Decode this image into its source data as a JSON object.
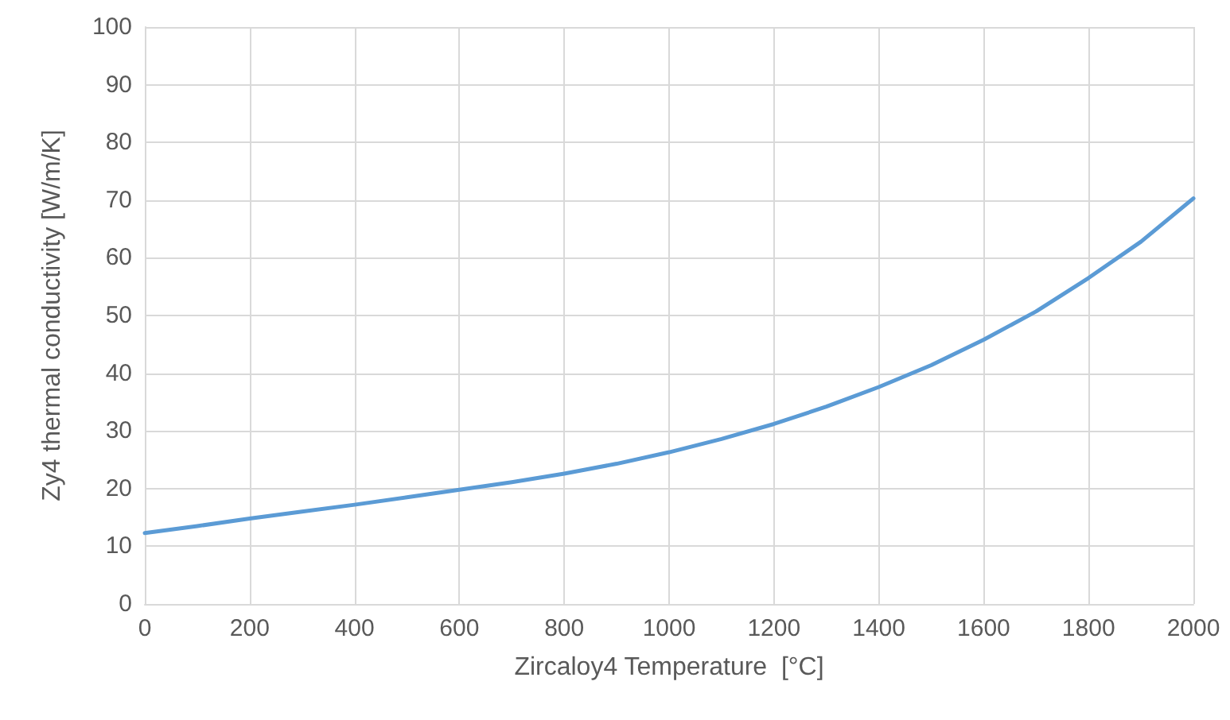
{
  "chart_data": {
    "type": "line",
    "xlabel": "Zircaloy4 Temperature  [°C]",
    "ylabel": "Zy4 thermal conductivity [W/m/K]",
    "x": [
      0,
      100,
      200,
      300,
      400,
      500,
      600,
      700,
      800,
      900,
      1000,
      1100,
      1200,
      1300,
      1400,
      1500,
      1600,
      1700,
      1800,
      1900,
      2000
    ],
    "series": [
      {
        "color": "#5b9bd5",
        "values": [
          12.3,
          13.5,
          14.8,
          16.0,
          17.2,
          18.5,
          19.8,
          21.1,
          22.6,
          24.3,
          26.3,
          28.6,
          31.2,
          34.2,
          37.6,
          41.4,
          45.8,
          50.7,
          56.5,
          62.8,
          70.3
        ]
      }
    ],
    "xlim": [
      0,
      2000
    ],
    "xticks": [
      0,
      200,
      400,
      600,
      800,
      1000,
      1200,
      1400,
      1600,
      1800,
      2000
    ],
    "ylim": [
      0,
      100
    ],
    "yticks": [
      0,
      10,
      20,
      30,
      40,
      50,
      60,
      70,
      80,
      90,
      100
    ],
    "grid": true,
    "marker": "none",
    "line_style": "solid"
  }
}
